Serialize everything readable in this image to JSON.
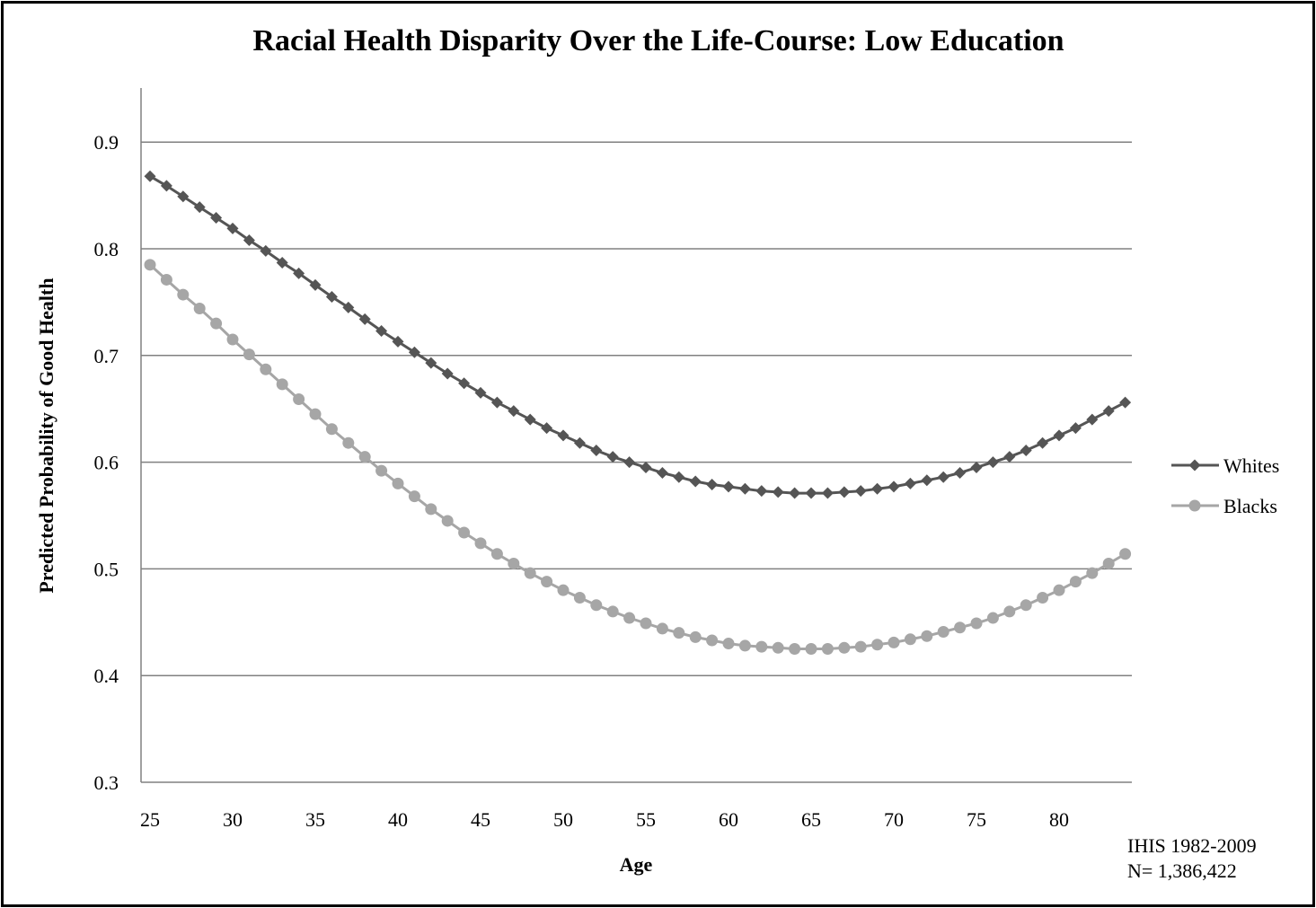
{
  "chart_data": {
    "type": "line",
    "title": "Racial Health Disparity Over the Life-Course: Low Education",
    "xlabel": "Age",
    "ylabel": "Predicted Probability of Good Health",
    "xlim": [
      25,
      84
    ],
    "ylim": [
      0.3,
      0.95
    ],
    "x_ticks": [
      25,
      30,
      35,
      40,
      45,
      50,
      55,
      60,
      65,
      70,
      75,
      80
    ],
    "y_ticks": [
      "0.3",
      "0.4",
      "0.5",
      "0.6",
      "0.7",
      "0.8",
      "0.9"
    ],
    "grid": true,
    "legend_position": "right",
    "note_lines": [
      "IHIS 1982-2009",
      "N= 1,386,422"
    ],
    "x": [
      25,
      26,
      27,
      28,
      29,
      30,
      31,
      32,
      33,
      34,
      35,
      36,
      37,
      38,
      39,
      40,
      41,
      42,
      43,
      44,
      45,
      46,
      47,
      48,
      49,
      50,
      51,
      52,
      53,
      54,
      55,
      56,
      57,
      58,
      59,
      60,
      61,
      62,
      63,
      64,
      65,
      66,
      67,
      68,
      69,
      70,
      71,
      72,
      73,
      74,
      75,
      76,
      77,
      78,
      79,
      80,
      81,
      82,
      83,
      84
    ],
    "series": [
      {
        "name": "Whites",
        "marker": "diamond",
        "color": "#555555",
        "values": [
          0.868,
          0.859,
          0.849,
          0.839,
          0.829,
          0.819,
          0.808,
          0.798,
          0.787,
          0.777,
          0.766,
          0.755,
          0.745,
          0.734,
          0.723,
          0.713,
          0.703,
          0.693,
          0.683,
          0.674,
          0.665,
          0.656,
          0.648,
          0.64,
          0.632,
          0.625,
          0.618,
          0.611,
          0.605,
          0.6,
          0.595,
          0.59,
          0.586,
          0.582,
          0.579,
          0.577,
          0.575,
          0.573,
          0.572,
          0.571,
          0.571,
          0.571,
          0.572,
          0.573,
          0.575,
          0.577,
          0.58,
          0.583,
          0.586,
          0.59,
          0.595,
          0.6,
          0.605,
          0.611,
          0.618,
          0.625,
          0.632,
          0.64,
          0.648,
          0.656
        ]
      },
      {
        "name": "Blacks",
        "marker": "circle",
        "color": "#a6a6a6",
        "values": [
          0.785,
          0.771,
          0.757,
          0.744,
          0.73,
          0.715,
          0.701,
          0.687,
          0.673,
          0.659,
          0.645,
          0.631,
          0.618,
          0.605,
          0.592,
          0.58,
          0.568,
          0.556,
          0.545,
          0.534,
          0.524,
          0.514,
          0.505,
          0.496,
          0.488,
          0.48,
          0.473,
          0.466,
          0.46,
          0.454,
          0.449,
          0.444,
          0.44,
          0.436,
          0.433,
          0.43,
          0.428,
          0.427,
          0.426,
          0.425,
          0.425,
          0.425,
          0.426,
          0.427,
          0.429,
          0.431,
          0.434,
          0.437,
          0.441,
          0.445,
          0.449,
          0.454,
          0.46,
          0.466,
          0.473,
          0.48,
          0.488,
          0.496,
          0.505,
          0.514
        ]
      }
    ]
  }
}
